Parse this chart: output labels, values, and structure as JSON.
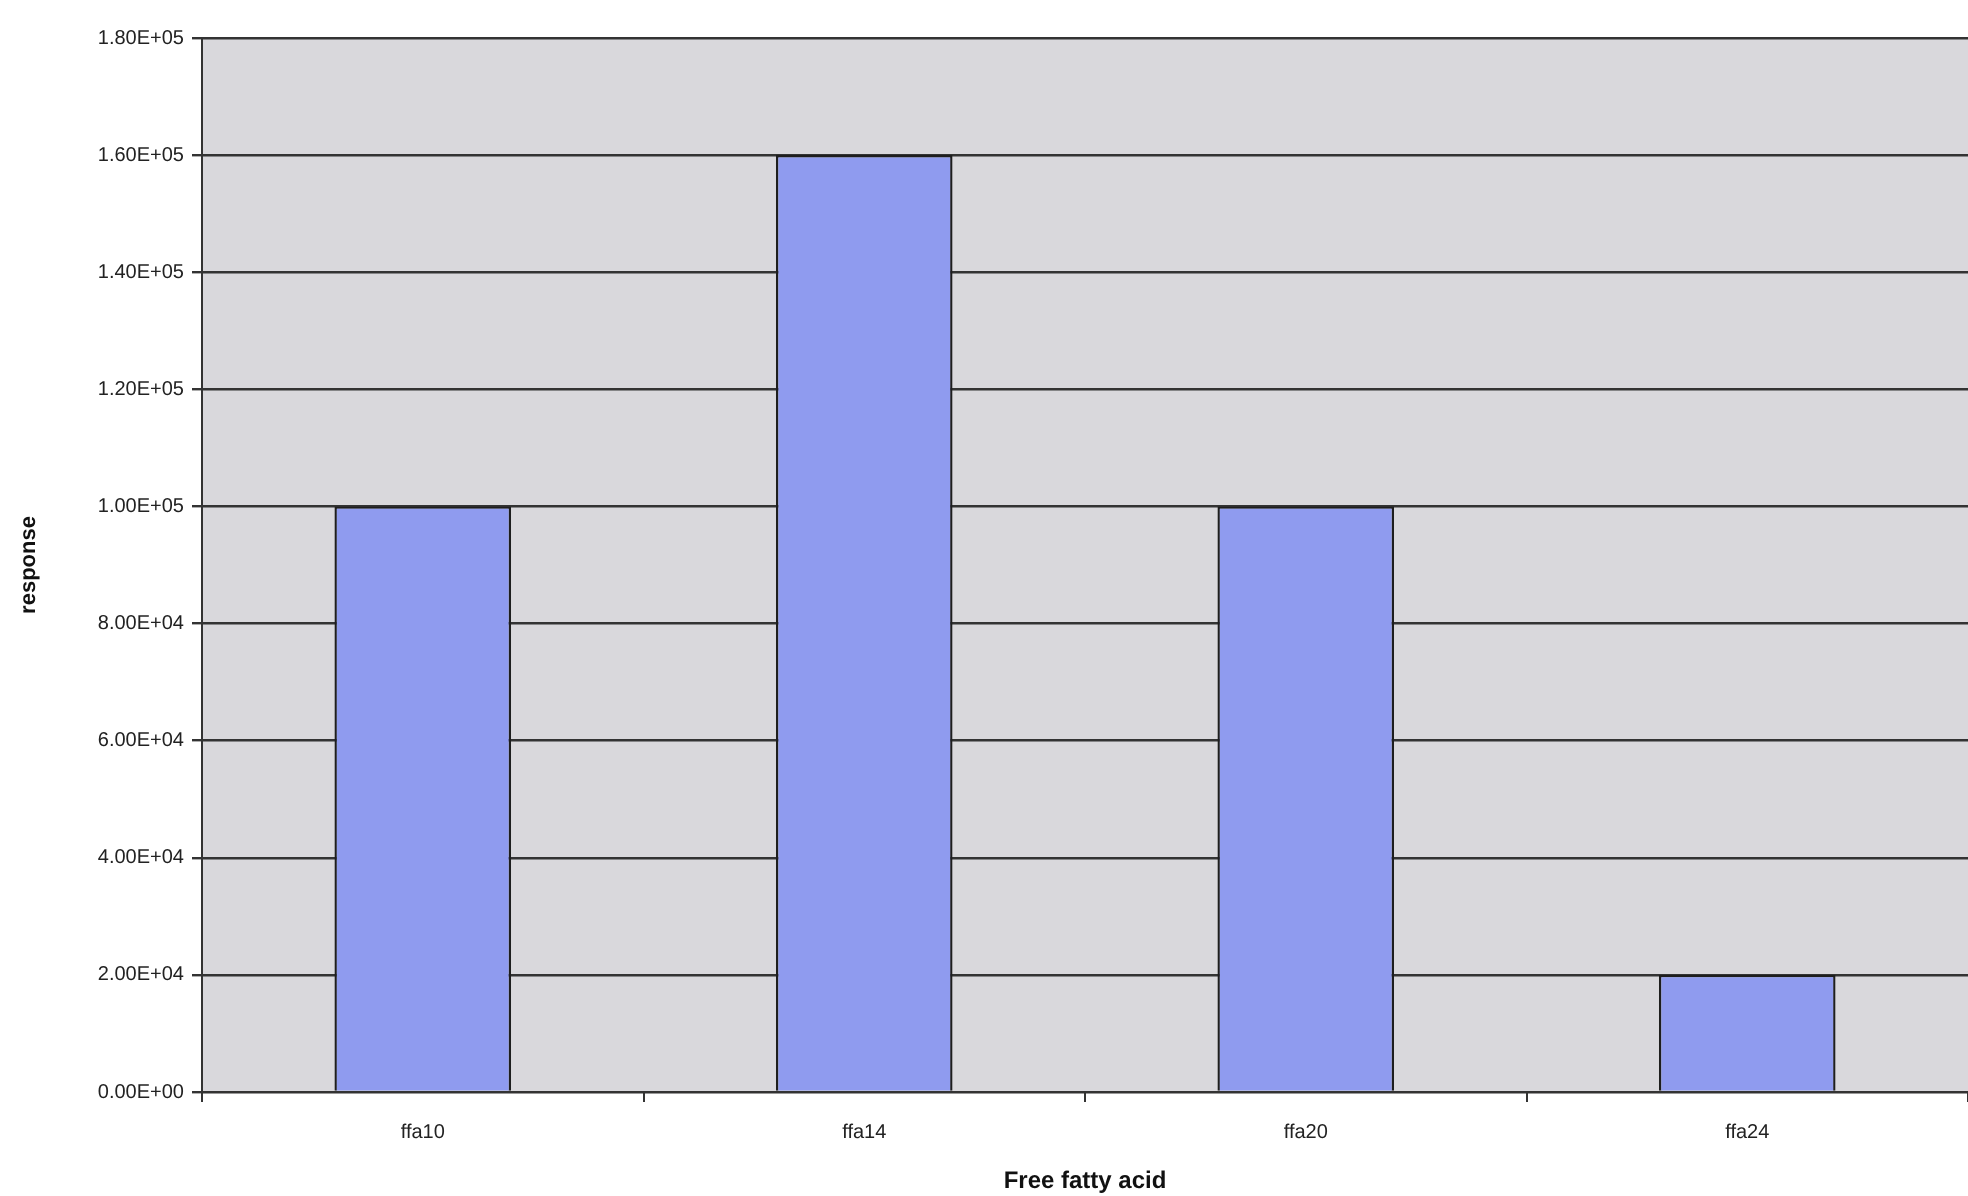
{
  "chart_data": {
    "type": "bar",
    "xlabel": "Free fatty acid",
    "ylabel": "response",
    "categories": [
      "ffa10",
      "ffa14",
      "ffa20",
      "ffa24"
    ],
    "values": [
      100000,
      160000,
      100000,
      20000
    ],
    "color": "#8f9bef",
    "ylim": [
      0,
      180000
    ],
    "yticks": [
      {
        "value": 0,
        "label": "0.00E+00"
      },
      {
        "value": 20000,
        "label": "2.00E+04"
      },
      {
        "value": 40000,
        "label": "4.00E+04"
      },
      {
        "value": 60000,
        "label": "6.00E+04"
      },
      {
        "value": 80000,
        "label": "8.00E+04"
      },
      {
        "value": 100000,
        "label": "1.00E+05"
      },
      {
        "value": 120000,
        "label": "1.20E+05"
      },
      {
        "value": 140000,
        "label": "1.40E+05"
      },
      {
        "value": 160000,
        "label": "1.60E+05"
      },
      {
        "value": 180000,
        "label": "1.80E+05"
      }
    ],
    "grid": "y"
  }
}
